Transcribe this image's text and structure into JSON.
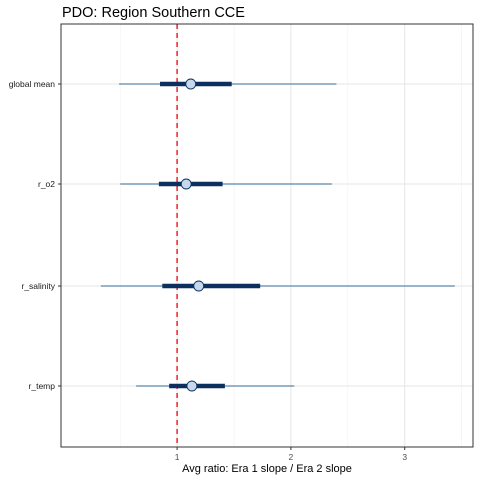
{
  "chart_data": {
    "type": "interval",
    "title": "PDO: Region Southern CCE",
    "xlabel": "Avg ratio: Era 1 slope / Era 2 slope",
    "ylabel": "",
    "xlim": [
      -0.02,
      3.6
    ],
    "x_ticks": [
      1,
      2,
      3
    ],
    "reference_line": {
      "x": 1,
      "style": "dashed",
      "color": "#e8000b"
    },
    "grid": true,
    "categories": [
      "global mean",
      "r_o2",
      "r_salinity",
      "r_temp"
    ],
    "rows": [
      {
        "label": "global mean",
        "point": 1.12,
        "inner": [
          0.85,
          1.48
        ],
        "outer": [
          0.49,
          2.4
        ]
      },
      {
        "label": "r_o2",
        "point": 1.08,
        "inner": [
          0.84,
          1.4
        ],
        "outer": [
          0.5,
          2.36
        ]
      },
      {
        "label": "r_salinity",
        "point": 1.19,
        "inner": [
          0.87,
          1.73
        ],
        "outer": [
          0.33,
          3.44
        ]
      },
      {
        "label": "r_temp",
        "point": 1.13,
        "inner": [
          0.93,
          1.42
        ],
        "outer": [
          0.64,
          2.03
        ]
      }
    ],
    "colors": {
      "outer_line": "#5b87aa",
      "inner_line": "#0b2f5f",
      "point_fill": "#c5d8ec",
      "point_stroke": "#0b2f5f",
      "reference": "#e8000b",
      "grid": "#e6e6e6",
      "panel_border": "#333333"
    }
  }
}
